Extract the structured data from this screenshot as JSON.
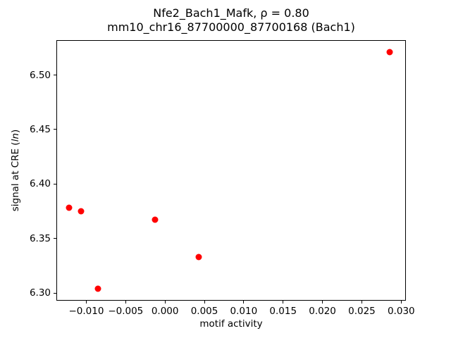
{
  "chart_data": {
    "type": "scatter",
    "title_line1": "Nfe2_Bach1_Mafk, ρ = 0.80",
    "title_line2": "mm10_chr16_87700000_87700168 (Bach1)",
    "xlabel": "motif activity",
    "ylabel_prefix": "signal at CRE (",
    "ylabel_italic": "ln",
    "ylabel_suffix": ")",
    "marker_color": "#ff0000",
    "xlim": [
      -0.0138,
      0.0306
    ],
    "ylim": [
      6.293,
      6.532
    ],
    "x_ticks": [
      -0.01,
      -0.005,
      0.0,
      0.005,
      0.01,
      0.015,
      0.02,
      0.025,
      0.03
    ],
    "y_ticks": [
      6.3,
      6.35,
      6.4,
      6.45,
      6.5
    ],
    "points": [
      {
        "x": -0.0122,
        "y": 6.378
      },
      {
        "x": -0.0107,
        "y": 6.375
      },
      {
        "x": -0.0085,
        "y": 6.304
      },
      {
        "x": -0.0013,
        "y": 6.367
      },
      {
        "x": 0.0043,
        "y": 6.333
      },
      {
        "x": 0.0285,
        "y": 6.521
      }
    ],
    "grid": false,
    "legend": null
  }
}
